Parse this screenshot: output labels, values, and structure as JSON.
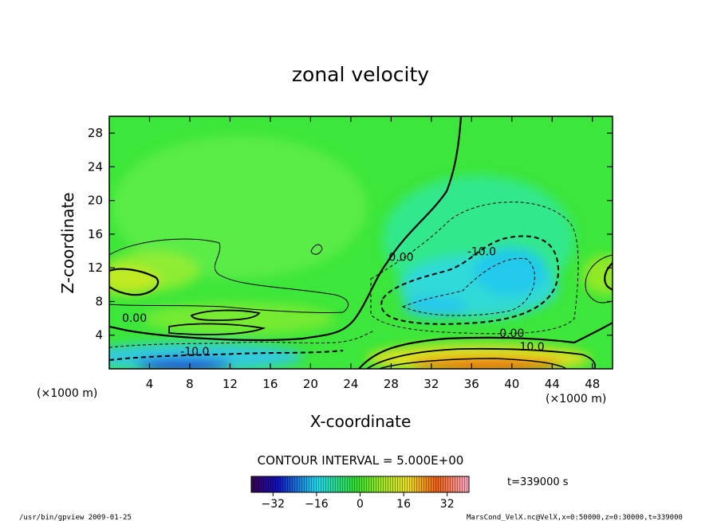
{
  "chart_data": {
    "type": "heatmap",
    "title": "zonal velocity",
    "xlabel": "X-coordinate",
    "ylabel": "Z-coordinate",
    "x_unit_left": "(×1000 m)",
    "x_unit_right": "(×1000 m)",
    "xlim": [
      0,
      50
    ],
    "ylim": [
      0,
      30
    ],
    "x_ticks": [
      4,
      8,
      12,
      16,
      20,
      24,
      28,
      32,
      36,
      40,
      44,
      48
    ],
    "y_ticks": [
      4,
      8,
      12,
      16,
      20,
      24,
      28
    ],
    "contour_labels": [
      {
        "text": "0.00",
        "x": 29.0,
        "y": 12.8
      },
      {
        "text": "-10.0",
        "x": 37.0,
        "y": 13.5
      },
      {
        "text": "0.00",
        "x": 2.5,
        "y": 5.6
      },
      {
        "text": "-10.0",
        "x": 8.5,
        "y": 1.6
      },
      {
        "text": "0.00",
        "x": 40.0,
        "y": 3.8
      },
      {
        "text": "10.0",
        "x": 42.0,
        "y": 2.2
      }
    ],
    "contour_interval_text": "CONTOUR INTERVAL = 5.000E+00",
    "colorbar": {
      "min": -40,
      "max": 40,
      "tick_values": [
        -32,
        -16,
        0,
        16,
        32
      ],
      "tick_labels": [
        "−32",
        "−16",
        "0",
        "16",
        "32"
      ]
    },
    "time_label": "t=339000 s"
  },
  "footer": {
    "left": "/usr/bin/gpview  2009-01-25",
    "right": "MarsCond_VelX.nc@VelX,x=0:50000,z=0:30000,t=339000"
  }
}
